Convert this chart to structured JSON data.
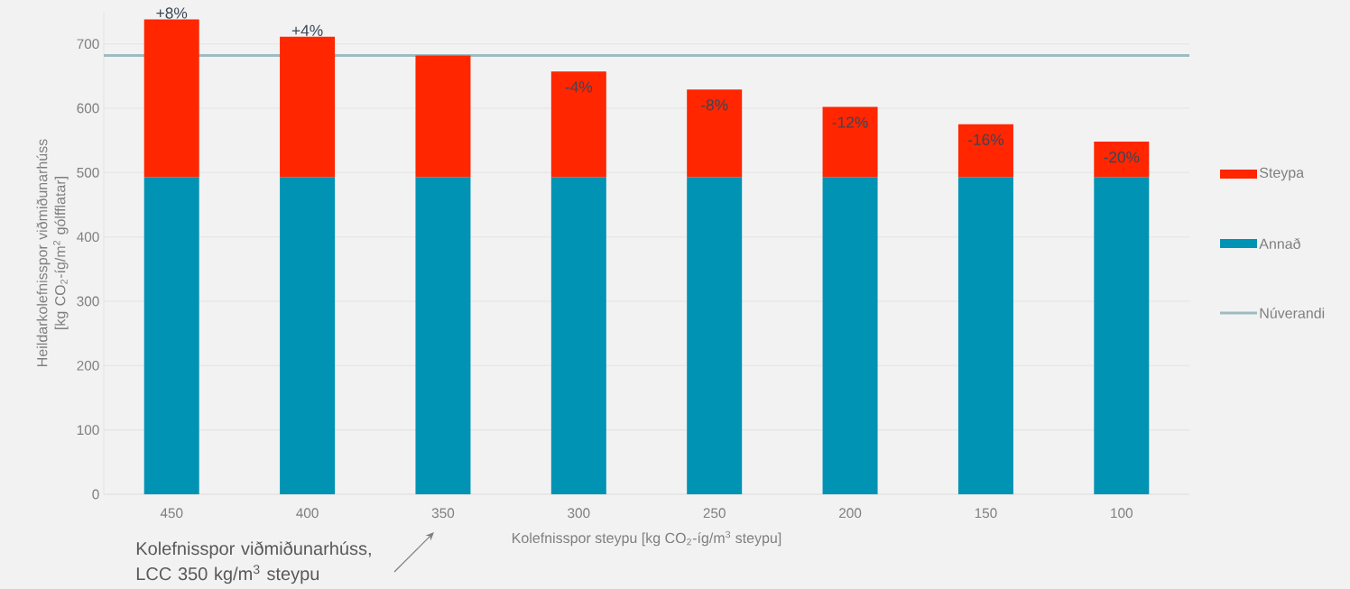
{
  "chart_data": {
    "type": "bar",
    "stacked": true,
    "categories": [
      "450",
      "400",
      "350",
      "300",
      "250",
      "200",
      "150",
      "100"
    ],
    "series": [
      {
        "name": "Annað",
        "color": "#0093b4",
        "values": [
          493,
          493,
          493,
          493,
          493,
          493,
          493,
          493
        ]
      },
      {
        "name": "Steypa",
        "color": "#ff2600",
        "values": [
          245,
          218,
          189,
          164,
          136,
          109,
          82,
          55
        ]
      }
    ],
    "ref_lines": [
      {
        "axis": "y",
        "value": 682,
        "label": "Núverandi",
        "color": "#9dbcc0"
      }
    ],
    "xlabel": "Kolefnisspor steypu [kg CO$_{2}$-íg/m$^{3}$ steypu]",
    "ylabel": "Heildarkolefnisspor viðmiðunarhúss [kg CO$_{2}$-íg/m$^{2}$ gólfflatar]",
    "ylim": [
      0,
      750
    ],
    "yticks": [
      0,
      100,
      200,
      300,
      400,
      500,
      600,
      700
    ],
    "grid": "y",
    "legend": "right",
    "annotations": [
      {
        "text": "+8%",
        "x": "450",
        "y": 738
      },
      {
        "text": "+4%",
        "x": "400",
        "y": 711
      },
      {
        "text": "-4%",
        "x": "300",
        "y": 657
      },
      {
        "text": "-8%",
        "x": "250",
        "y": 629
      },
      {
        "text": "-12%",
        "x": "200",
        "y": 602
      },
      {
        "text": "-16%",
        "x": "150",
        "y": 575
      },
      {
        "text": "-20%",
        "x": "100",
        "y": 548
      },
      "Kolefnisspor viðmiðunarhúss, LCC 350 kg/m$^{3}$ steypu"
    ]
  }
}
